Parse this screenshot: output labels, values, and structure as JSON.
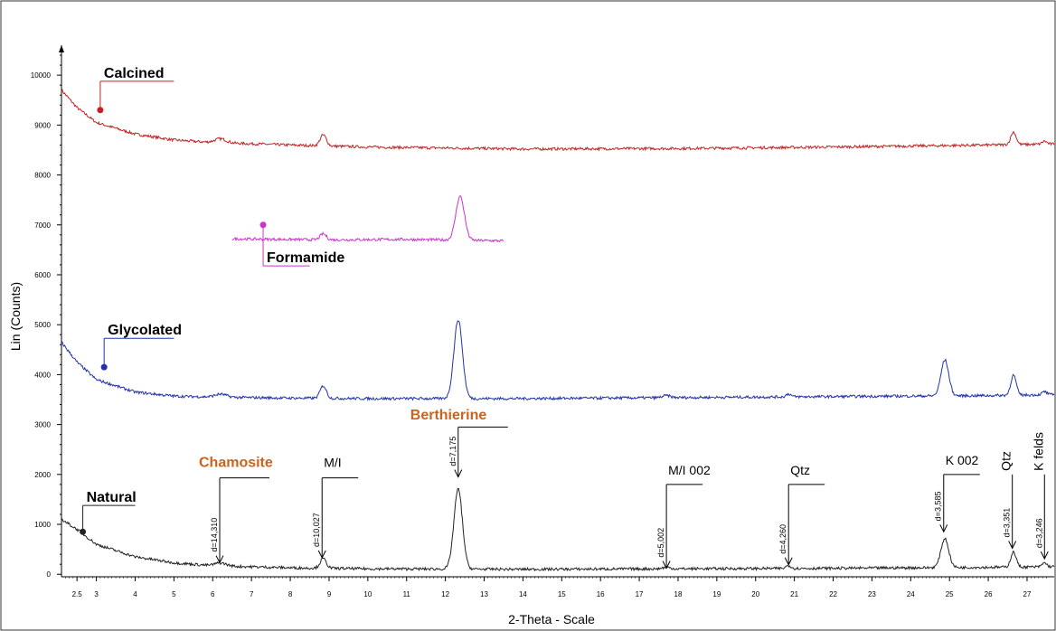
{
  "chart_data": {
    "type": "line",
    "xlabel": "2-Theta - Scale",
    "ylabel": "Lin (Counts)",
    "xlim": [
      2.1,
      27.7
    ],
    "ylim": [
      -50,
      10600
    ],
    "x_ticks": [
      "2.5",
      "3",
      "4",
      "5",
      "6",
      "7",
      "8",
      "9",
      "10",
      "11",
      "12",
      "13",
      "14",
      "15",
      "16",
      "17",
      "18",
      "19",
      "20",
      "21",
      "22",
      "23",
      "24",
      "25",
      "26",
      "27"
    ],
    "y_ticks": [
      "0",
      "1000",
      "2000",
      "3000",
      "4000",
      "5000",
      "6000",
      "7000",
      "8000",
      "9000",
      "10000"
    ],
    "series": [
      {
        "name": "Calcined",
        "color": "#c42222",
        "x_range": [
          2.1,
          27.7
        ],
        "baseline": [
          [
            2.1,
            9700
          ],
          [
            2.5,
            9350
          ],
          [
            3.0,
            9050
          ],
          [
            4.0,
            8820
          ],
          [
            5.0,
            8700
          ],
          [
            6.0,
            8650
          ],
          [
            8.0,
            8600
          ],
          [
            10.0,
            8560
          ],
          [
            14.0,
            8520
          ],
          [
            18.0,
            8530
          ],
          [
            22.0,
            8560
          ],
          [
            26.0,
            8600
          ],
          [
            27.7,
            8620
          ]
        ],
        "peaks": [
          {
            "x": 6.2,
            "h": 80,
            "w": 0.15
          },
          {
            "x": 8.85,
            "h": 220,
            "w": 0.08
          },
          {
            "x": 26.65,
            "h": 250,
            "w": 0.07
          },
          {
            "x": 27.45,
            "h": 60,
            "w": 0.06
          }
        ],
        "label": "Calcined",
        "label_style": "bold",
        "marker_x": 3.1,
        "marker_y": 9300,
        "label_x": 3.1,
        "label_y": 9950,
        "underline_to_x": 5.0
      },
      {
        "name": "Formamide",
        "color": "#cc33cc",
        "x_range": [
          6.5,
          13.5
        ],
        "baseline": [
          [
            6.5,
            6720
          ],
          [
            9.0,
            6700
          ],
          [
            11.0,
            6710
          ],
          [
            13.5,
            6680
          ]
        ],
        "peaks": [
          {
            "x": 8.85,
            "h": 120,
            "w": 0.08
          },
          {
            "x": 12.38,
            "h": 880,
            "w": 0.11
          }
        ],
        "label": "Formamide",
        "label_style": "bold",
        "marker_x": 7.3,
        "marker_y": 7000,
        "label_x": 7.3,
        "label_y": 6250,
        "underline_to_x": 8.5
      },
      {
        "name": "Glycolated",
        "color": "#2233aa",
        "x_range": [
          2.1,
          27.7
        ],
        "baseline": [
          [
            2.1,
            4650
          ],
          [
            2.5,
            4250
          ],
          [
            3.0,
            3900
          ],
          [
            4.0,
            3650
          ],
          [
            5.0,
            3570
          ],
          [
            6.0,
            3550
          ],
          [
            8.0,
            3530
          ],
          [
            10.0,
            3520
          ],
          [
            14.0,
            3520
          ],
          [
            18.0,
            3540
          ],
          [
            22.0,
            3560
          ],
          [
            26.0,
            3580
          ],
          [
            27.7,
            3600
          ]
        ],
        "peaks": [
          {
            "x": 6.2,
            "h": 60,
            "w": 0.15
          },
          {
            "x": 8.85,
            "h": 250,
            "w": 0.08
          },
          {
            "x": 12.33,
            "h": 1580,
            "w": 0.11
          },
          {
            "x": 17.7,
            "h": 40,
            "w": 0.1
          },
          {
            "x": 20.85,
            "h": 60,
            "w": 0.06
          },
          {
            "x": 24.88,
            "h": 720,
            "w": 0.1
          },
          {
            "x": 26.65,
            "h": 400,
            "w": 0.07
          },
          {
            "x": 27.45,
            "h": 60,
            "w": 0.06
          }
        ],
        "label": "Glycolated",
        "label_style": "bold",
        "marker_x": 3.2,
        "marker_y": 4150,
        "label_x": 3.2,
        "label_y": 4800,
        "underline_to_x": 5.0
      },
      {
        "name": "Natural",
        "color": "#222222",
        "x_range": [
          2.1,
          27.7
        ],
        "baseline": [
          [
            2.1,
            1100
          ],
          [
            2.5,
            900
          ],
          [
            3.0,
            600
          ],
          [
            4.0,
            350
          ],
          [
            5.0,
            230
          ],
          [
            6.0,
            170
          ],
          [
            8.0,
            130
          ],
          [
            10.0,
            110
          ],
          [
            14.0,
            100
          ],
          [
            18.0,
            110
          ],
          [
            22.0,
            120
          ],
          [
            26.0,
            140
          ],
          [
            27.7,
            150
          ]
        ],
        "peaks": [
          {
            "x": 6.2,
            "h": 60,
            "w": 0.15
          },
          {
            "x": 8.85,
            "h": 190,
            "w": 0.08
          },
          {
            "x": 12.33,
            "h": 1600,
            "w": 0.11
          },
          {
            "x": 17.7,
            "h": 30,
            "w": 0.1
          },
          {
            "x": 20.85,
            "h": 60,
            "w": 0.06
          },
          {
            "x": 24.88,
            "h": 580,
            "w": 0.1
          },
          {
            "x": 26.65,
            "h": 300,
            "w": 0.07
          },
          {
            "x": 27.45,
            "h": 80,
            "w": 0.06
          }
        ],
        "label": "Natural",
        "label_style": "bold",
        "marker_x": 2.65,
        "marker_y": 850,
        "label_x": 2.65,
        "label_y": 1450,
        "underline_to_x": 4.0
      }
    ],
    "annotations": [
      {
        "name": "Chamosite",
        "text": "Chamosite",
        "dvalue": "d=14,310",
        "x": 6.18,
        "arrow_y": 230,
        "top_y": 1930,
        "style": "orange",
        "rot": false,
        "label_y": 2150,
        "label_dx": -25
      },
      {
        "name": "M/I",
        "text": "M/I",
        "dvalue": "d=10,027",
        "x": 8.82,
        "arrow_y": 330,
        "top_y": 1930,
        "style": "peak",
        "rot": false,
        "label_y": 2150,
        "label_dx": 0
      },
      {
        "name": "Berthierine",
        "text": "Berthierine",
        "dvalue": "d=7,175",
        "x": 12.33,
        "arrow_y": 1950,
        "top_y": 2950,
        "style": "orange",
        "rot": false,
        "label_y": 3100,
        "label_dx": -55
      },
      {
        "name": "M/I 002",
        "text": "M/I  002",
        "dvalue": "d=5,002",
        "x": 17.7,
        "arrow_y": 120,
        "top_y": 1800,
        "style": "peak",
        "rot": false,
        "label_y": 2000,
        "label_dx": 0
      },
      {
        "name": "Qtz",
        "text": "Qtz",
        "dvalue": "d=4,260",
        "x": 20.85,
        "arrow_y": 190,
        "top_y": 1800,
        "style": "peak",
        "rot": false,
        "label_y": 2000,
        "label_dx": 0
      },
      {
        "name": "K 002",
        "text": "K  002",
        "dvalue": "d=3,585",
        "x": 24.85,
        "arrow_y": 850,
        "top_y": 2000,
        "style": "peak",
        "rot": false,
        "label_y": 2200,
        "label_dx": 0
      },
      {
        "name": "Qtz 26.6",
        "text": "Qtz",
        "dvalue": "d=3,351",
        "x": 26.62,
        "arrow_y": 520,
        "top_y": 2000,
        "style": "peak",
        "rot": true,
        "label_y": 2000,
        "label_dx": 0
      },
      {
        "name": "K felds",
        "text": "K felds",
        "dvalue": "d=3,246",
        "x": 27.45,
        "arrow_y": 310,
        "top_y": 2000,
        "style": "peak",
        "rot": true,
        "label_y": 2000,
        "label_dx": 0
      }
    ],
    "grid": false,
    "legend": "inline labels"
  }
}
